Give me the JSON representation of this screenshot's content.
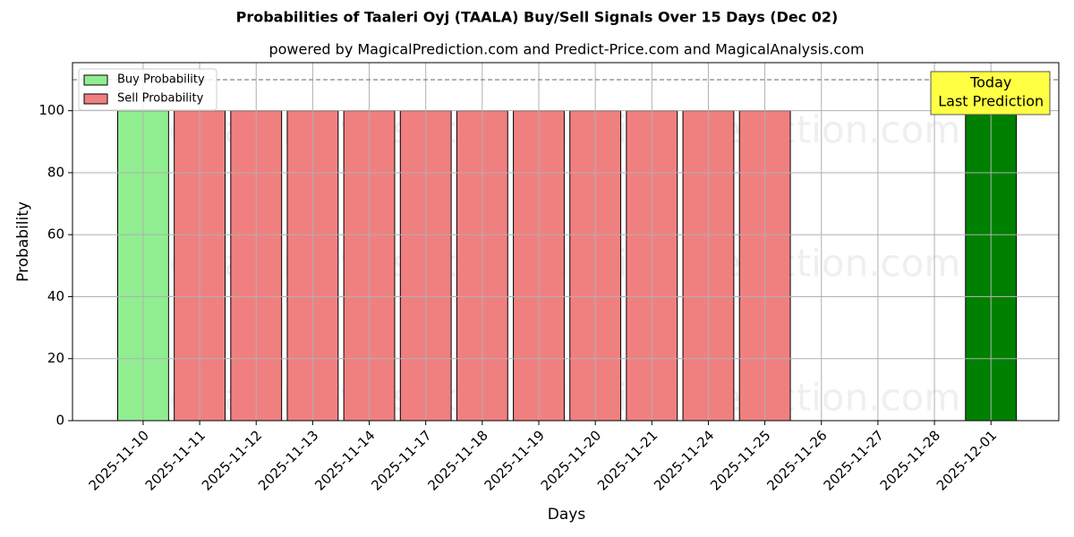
{
  "chart_data": {
    "type": "bar",
    "title": "Probabilities of Taaleri Oyj (TAALA) Buy/Sell Signals Over 15 Days (Dec 02)",
    "subtitle": "powered by MagicalPrediction.com and Predict-Price.com and MagicalAnalysis.com",
    "x_label": "Days",
    "y_label": "Probability",
    "categories": [
      "2025-11-10",
      "2025-11-11",
      "2025-11-12",
      "2025-11-13",
      "2025-11-14",
      "2025-11-17",
      "2025-11-18",
      "2025-11-19",
      "2025-11-20",
      "2025-11-21",
      "2025-11-24",
      "2025-11-25",
      "2025-11-26",
      "2025-11-27",
      "2025-11-28",
      "2025-12-01"
    ],
    "series": [
      {
        "name": "Buy Probability",
        "color": "#90ee90",
        "values": [
          100,
          null,
          null,
          null,
          null,
          null,
          null,
          null,
          null,
          null,
          null,
          null,
          null,
          null,
          null,
          100
        ],
        "colors": [
          "#90ee90",
          null,
          null,
          null,
          null,
          null,
          null,
          null,
          null,
          null,
          null,
          null,
          null,
          null,
          null,
          "#008000"
        ]
      },
      {
        "name": "Sell Probability",
        "color": "#f08080",
        "values": [
          null,
          100,
          100,
          100,
          100,
          100,
          100,
          100,
          100,
          100,
          100,
          100,
          null,
          null,
          null,
          null
        ],
        "colors": [
          null,
          "#f08080",
          "#f08080",
          "#f08080",
          "#f08080",
          "#f08080",
          "#f08080",
          "#f08080",
          "#f08080",
          "#f08080",
          "#f08080",
          "#f08080",
          null,
          null,
          null,
          null
        ]
      }
    ],
    "ylim": [
      0,
      115.5
    ],
    "yticks": [
      0,
      20,
      40,
      60,
      80,
      100
    ],
    "grid": true,
    "legend": "upper left",
    "hline": 110,
    "annotation": [
      "Today",
      "Last Prediction"
    ],
    "watermarks": [
      "MagicalAnalysis.com",
      "MagicalPrediction.com"
    ]
  }
}
